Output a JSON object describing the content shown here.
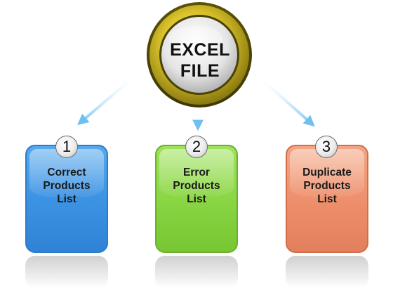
{
  "hub": {
    "lines": [
      "EXCEL",
      "FILE"
    ]
  },
  "nodes": [
    {
      "number": "1",
      "lines": [
        "Correct",
        "Products",
        "List"
      ],
      "color": "#3d93e3"
    },
    {
      "number": "2",
      "lines": [
        "Error",
        "Products",
        "List"
      ],
      "color": "#8ad644"
    },
    {
      "number": "3",
      "lines": [
        "Duplicate",
        "Products",
        "List"
      ],
      "color": "#ee906d"
    }
  ],
  "colors": {
    "hub_ring": "#c9b21a",
    "arrow": "#9dd3f3"
  }
}
